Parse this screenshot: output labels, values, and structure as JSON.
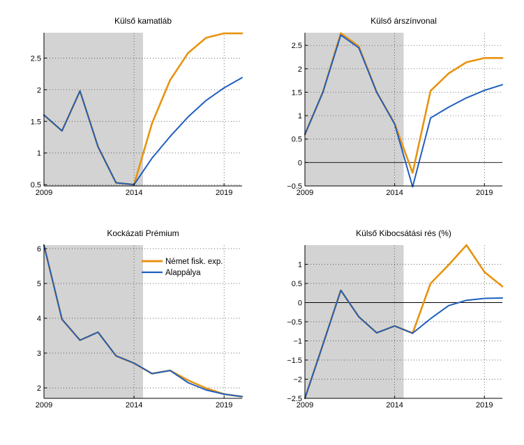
{
  "colors": {
    "nemet": "#E8930F",
    "alap": "#1F5FBE",
    "shade": "#D3D3D3",
    "grid": "#333333"
  },
  "chart_data": [
    {
      "type": "line",
      "title": "Külső kamatláb",
      "x": [
        2009,
        2010,
        2011,
        2012,
        2013,
        2014,
        2015,
        2016,
        2017,
        2018,
        2019,
        2020
      ],
      "xlim": [
        2009,
        2020
      ],
      "ylim": [
        0.48,
        2.9
      ],
      "xticks": [
        2009,
        2014,
        2019
      ],
      "yticks": [
        0.5,
        1,
        1.5,
        2,
        2.5
      ],
      "ytick_labels": [
        "0.5",
        "1",
        "1.5",
        "2",
        "2.5"
      ],
      "shade_x": [
        2009,
        2014.5
      ],
      "series": [
        {
          "name": "Német fisk. exp.",
          "values": [
            1.6,
            1.35,
            1.98,
            1.1,
            0.53,
            0.5,
            1.47,
            2.15,
            2.58,
            2.82,
            2.89,
            2.89
          ]
        },
        {
          "name": "Alappálya",
          "values": [
            1.6,
            1.35,
            1.98,
            1.1,
            0.53,
            0.5,
            0.92,
            1.26,
            1.57,
            1.83,
            2.03,
            2.19
          ]
        }
      ]
    },
    {
      "type": "line",
      "title": "Külső árszínvonal",
      "x": [
        2009,
        2010,
        2011,
        2012,
        2013,
        2014,
        2015,
        2016,
        2017,
        2018,
        2019,
        2020
      ],
      "xlim": [
        2009,
        2020
      ],
      "ylim": [
        -0.5,
        2.77
      ],
      "xticks": [
        2009,
        2014,
        2019
      ],
      "yticks": [
        -0.5,
        0,
        0.5,
        1,
        1.5,
        2,
        2.5
      ],
      "ytick_labels": [
        "−0.5",
        "0",
        "0.5",
        "1",
        "1.5",
        "2",
        "2.5"
      ],
      "shade_x": [
        2009,
        2014.5
      ],
      "zero_line": true,
      "series": [
        {
          "name": "Német fisk. exp.",
          "values": [
            0.6,
            1.5,
            2.76,
            2.48,
            1.5,
            0.83,
            -0.22,
            1.53,
            1.9,
            2.14,
            2.23,
            2.23
          ]
        },
        {
          "name": "Alappálya",
          "values": [
            0.6,
            1.5,
            2.72,
            2.45,
            1.5,
            0.82,
            -0.52,
            0.95,
            1.18,
            1.38,
            1.54,
            1.66
          ]
        }
      ]
    },
    {
      "type": "line",
      "title": "Kockázati Prémium",
      "x": [
        2009,
        2010,
        2011,
        2012,
        2013,
        2014,
        2015,
        2016,
        2017,
        2018,
        2019,
        2020
      ],
      "xlim": [
        2009,
        2020
      ],
      "ylim": [
        1.7,
        6.1
      ],
      "xticks": [
        2009,
        2014,
        2019
      ],
      "yticks": [
        2,
        3,
        4,
        5,
        6
      ],
      "ytick_labels": [
        "2",
        "3",
        "4",
        "5",
        "6"
      ],
      "shade_x": [
        2009,
        2014.5
      ],
      "legend": "top-right",
      "series": [
        {
          "name": "Német fisk. exp.",
          "values": [
            6.1,
            3.97,
            3.37,
            3.6,
            2.92,
            2.71,
            2.41,
            2.5,
            2.22,
            1.99,
            1.82,
            1.75
          ]
        },
        {
          "name": "Alappálya",
          "values": [
            6.1,
            3.97,
            3.37,
            3.6,
            2.92,
            2.71,
            2.41,
            2.5,
            2.15,
            1.94,
            1.82,
            1.75
          ]
        }
      ]
    },
    {
      "type": "line",
      "title": "Külső Kibocsátási rés (%)",
      "x": [
        2009,
        2010,
        2011,
        2012,
        2013,
        2014,
        2015,
        2016,
        2017,
        2018,
        2019,
        2020
      ],
      "xlim": [
        2009,
        2020
      ],
      "ylim": [
        -2.5,
        1.5
      ],
      "xticks": [
        2009,
        2014,
        2019
      ],
      "yticks": [
        -2.5,
        -2,
        -1.5,
        -1,
        -0.5,
        0,
        0.5,
        1
      ],
      "ytick_labels": [
        "−2.5",
        "−2",
        "−1.5",
        "−1",
        "−0.5",
        "0",
        "0.5",
        "1"
      ],
      "shade_x": [
        2009,
        2014.5
      ],
      "zero_line": true,
      "series": [
        {
          "name": "Német fisk. exp.",
          "values": [
            -2.5,
            -1.1,
            0.32,
            -0.37,
            -0.79,
            -0.61,
            -0.8,
            0.5,
            0.98,
            1.5,
            0.8,
            0.42
          ]
        },
        {
          "name": "Alappálya",
          "values": [
            -2.5,
            -1.1,
            0.32,
            -0.37,
            -0.79,
            -0.61,
            -0.8,
            -0.42,
            -0.08,
            0.06,
            0.11,
            0.12
          ]
        }
      ]
    }
  ]
}
